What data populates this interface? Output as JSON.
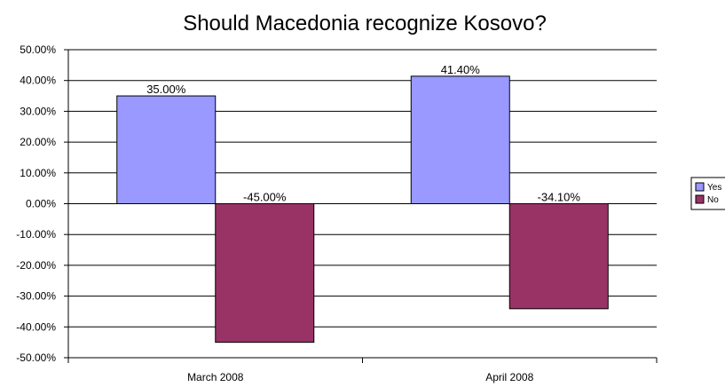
{
  "chart_data": {
    "type": "bar",
    "title": "Should Macedonia recognize Kosovo?",
    "xlabel": "",
    "ylabel": "",
    "categories": [
      "March 2008",
      "April 2008"
    ],
    "series": [
      {
        "name": "Yes",
        "values": [
          35.0,
          41.4
        ],
        "labels": [
          "35.00%",
          "41.40%"
        ],
        "color": "#9999ff"
      },
      {
        "name": "No",
        "values": [
          -45.0,
          -34.1
        ],
        "labels": [
          "-45.00%",
          "-34.10%"
        ],
        "color": "#993366"
      }
    ],
    "ylim": [
      -50,
      50
    ],
    "y_ticks": [
      "50.00%",
      "40.00%",
      "30.00%",
      "20.00%",
      "10.00%",
      "0.00%",
      "-10.00%",
      "-20.00%",
      "-30.00%",
      "-40.00%",
      "-50.00%"
    ],
    "grid": true,
    "legend_position": "right"
  }
}
